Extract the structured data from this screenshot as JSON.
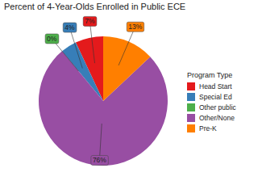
{
  "chart_data": {
    "type": "pie",
    "title": "Percent of 4-Year-Olds Enrolled in Public ECE",
    "legend_title": "Program Type",
    "categories": [
      "Head Start",
      "Special Ed",
      "Other public",
      "Other/None",
      "Pre-K"
    ],
    "values": [
      7,
      4,
      0,
      76,
      13
    ],
    "value_labels": [
      "7%",
      "4%",
      "0%",
      "76%",
      "13%"
    ],
    "colors": [
      "#e41a1c",
      "#377eb8",
      "#4daf4a",
      "#984ea3",
      "#ff7f00"
    ],
    "data_labels": true,
    "legend": "right"
  }
}
